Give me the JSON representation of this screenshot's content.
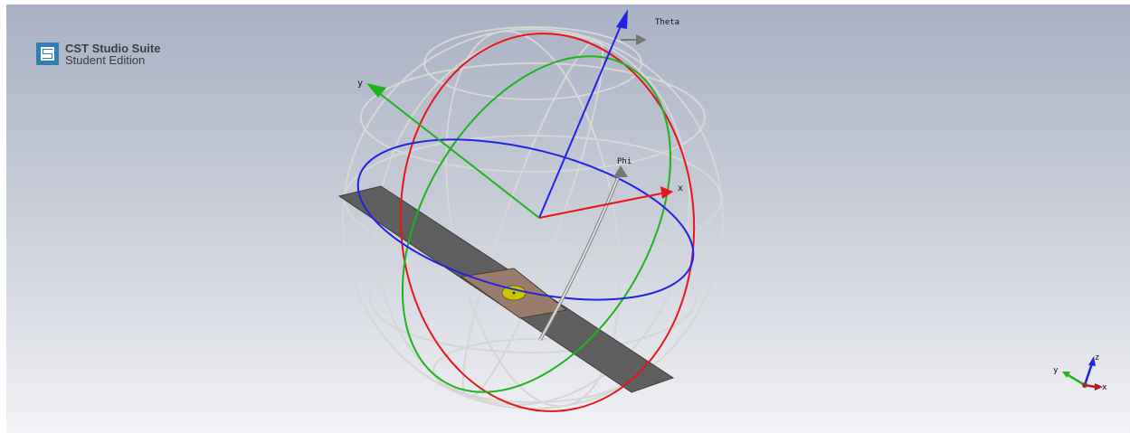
{
  "app": {
    "title": "CST Studio Suite",
    "edition": "Student Edition"
  },
  "scene": {
    "labels": {
      "theta": "Theta",
      "phi": "Phi",
      "y_axis": "y",
      "x_axis": "x"
    },
    "axes_triad": {
      "x": "x",
      "y": "y",
      "z": "z"
    },
    "colors": {
      "x_axis": "#e8141a",
      "y_axis": "#1fb31f",
      "z_axis": "#2222e6",
      "sphere_grid": "#d4d4d4",
      "substrate": "#5f5f5f",
      "patch": "#9b7d6c",
      "feed": "#c8c800",
      "background_top": "#a9b1c4",
      "background_bottom": "#f1f2f5"
    }
  }
}
